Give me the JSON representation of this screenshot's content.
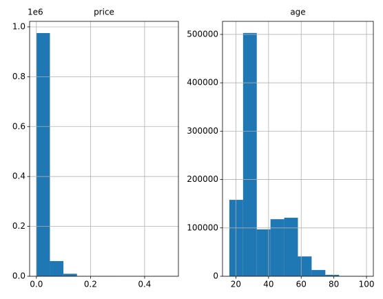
{
  "chart_data": [
    {
      "type": "histogram",
      "title": "price",
      "offset_label": "1e6",
      "color": "#1f77b4",
      "grid": true,
      "bins": [
        0,
        0.05,
        0.1,
        0.15,
        0.2,
        0.25,
        0.3,
        0.35,
        0.4,
        0.45,
        0.5
      ],
      "values": [
        975000,
        61000,
        10000,
        1000,
        400,
        200,
        100,
        50,
        50,
        20
      ],
      "xlim": [
        -0.025,
        0.525
      ],
      "xticks": [
        {
          "value": 0,
          "label": "0.0"
        },
        0.2,
        0.4
      ],
      "ylim": [
        0,
        1022000
      ],
      "yticks": [
        {
          "value": 0,
          "label": "0.0"
        },
        {
          "value": 200000,
          "label": "0.2"
        },
        {
          "value": 400000,
          "label": "0.4"
        },
        {
          "value": 600000,
          "label": "0.6"
        },
        {
          "value": 800000,
          "label": "0.8"
        },
        {
          "value": 1000000,
          "label": "1.0"
        }
      ]
    },
    {
      "type": "histogram",
      "title": "age",
      "color": "#1f77b4",
      "grid": true,
      "bins": [
        16,
        24.4,
        32.8,
        41.2,
        49.6,
        58,
        66.4,
        74.8,
        83.2,
        91.6,
        100
      ],
      "values": [
        158000,
        503000,
        97000,
        118000,
        121000,
        41000,
        13000,
        3000,
        500,
        100
      ],
      "xlim": [
        11.8,
        104.2
      ],
      "xticks": [
        20,
        40,
        60,
        80,
        100
      ],
      "ylim": [
        0,
        527000
      ],
      "yticks": [
        0,
        100000,
        200000,
        300000,
        400000,
        500000
      ]
    }
  ]
}
